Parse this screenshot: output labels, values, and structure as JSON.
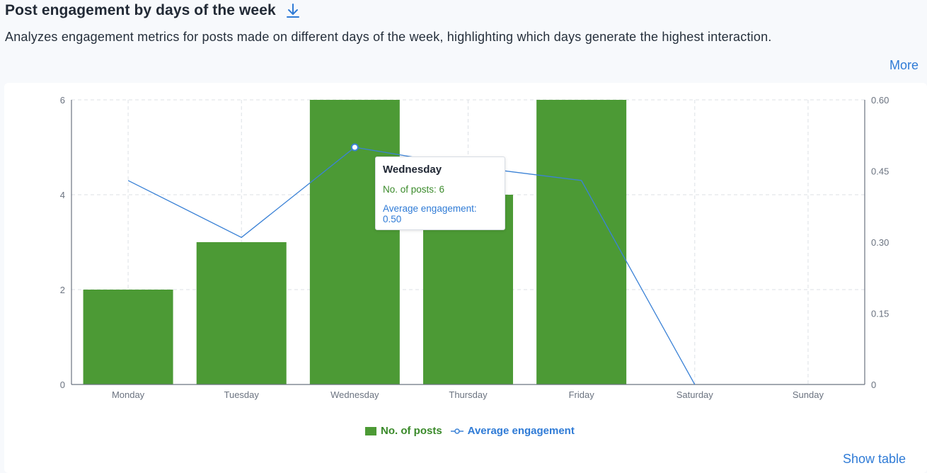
{
  "header": {
    "title": "Post engagement by days of the week",
    "download_icon": "download-icon",
    "subtitle": "Analyzes engagement metrics for posts made on different days of the week, highlighting which days generate the highest interaction.",
    "more_label": "More"
  },
  "colors": {
    "bar": "#4c9a35",
    "line": "#3b82d6",
    "grid": "#dde1e6",
    "axis": "#6b7380"
  },
  "chart_data": {
    "type": "bar",
    "categories": [
      "Monday",
      "Tuesday",
      "Wednesday",
      "Thursday",
      "Friday",
      "Saturday",
      "Sunday"
    ],
    "series": [
      {
        "name": "No. of posts",
        "type": "bar",
        "axis": "left",
        "values": [
          2,
          3,
          6,
          4,
          6,
          0,
          0
        ]
      },
      {
        "name": "Average engagement",
        "type": "line",
        "axis": "right",
        "values": [
          0.43,
          0.31,
          0.5,
          0.46,
          0.43,
          0,
          null
        ]
      }
    ],
    "y_left": {
      "min": 0,
      "max": 6,
      "ticks": [
        "0",
        "2",
        "4",
        "6"
      ]
    },
    "y_right": {
      "min": 0,
      "max": 0.6,
      "ticks": [
        "0",
        "0.15",
        "0.30",
        "0.45",
        "0.60"
      ]
    },
    "grid": true,
    "legend_position": "bottom-center"
  },
  "tooltip": {
    "title": "Wednesday",
    "posts_row": "No. of posts: 6",
    "engagement_row": "Average engagement: 0.50"
  },
  "legend": {
    "posts_label": "No. of posts",
    "engagement_label": "Average engagement"
  },
  "footer": {
    "show_table_label": "Show table"
  }
}
